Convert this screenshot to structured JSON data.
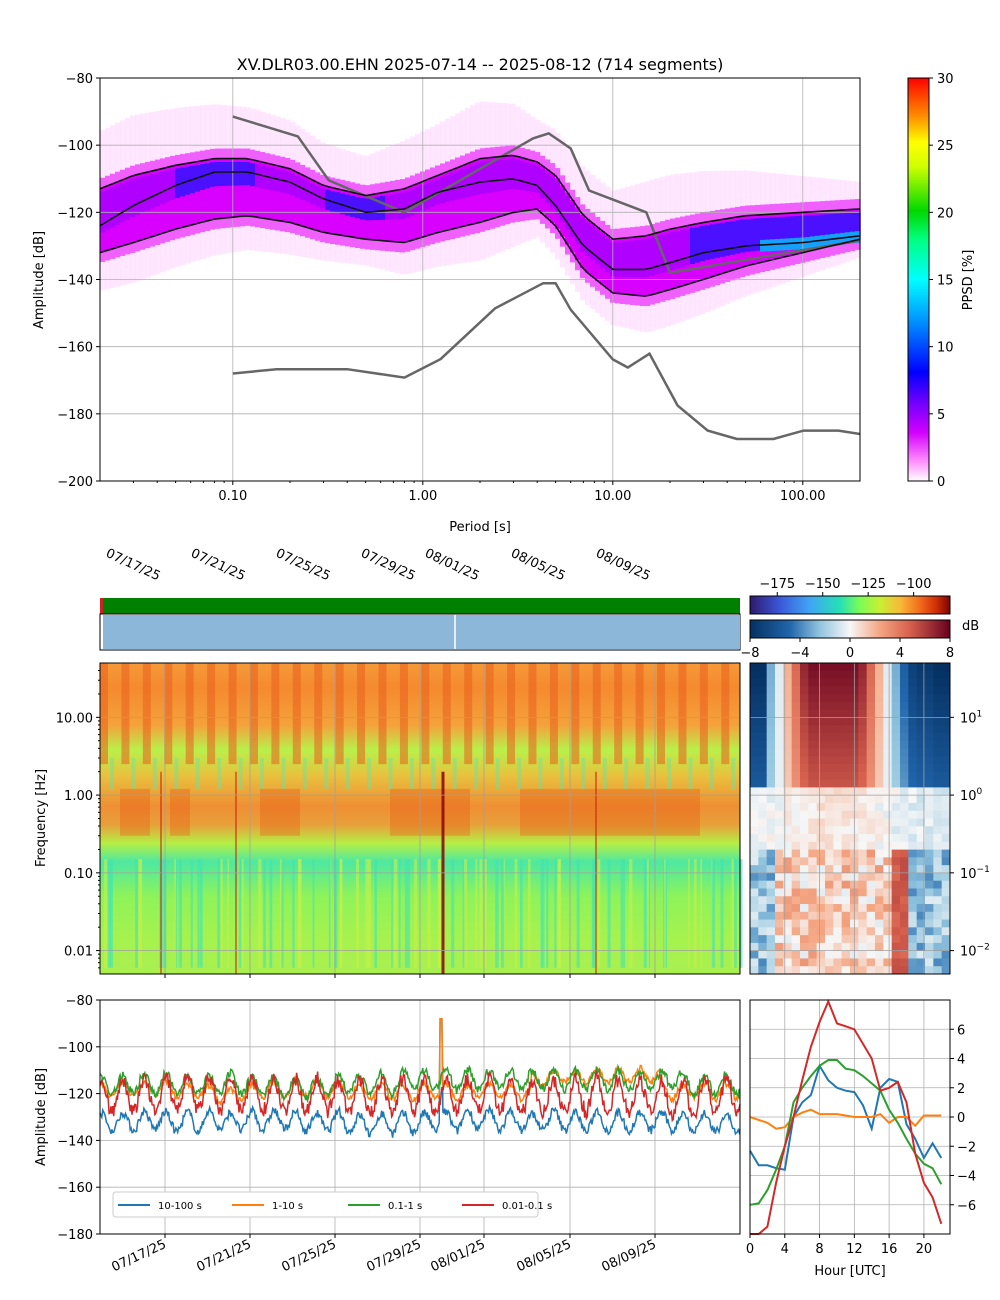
{
  "chart_data": [
    {
      "type": "heatmap",
      "title": "XV.DLR03.00.EHN   2025-07-14 -- 2025-08-12  (714 segments)",
      "xlabel": "Period [s]",
      "ylabel": "Amplitude [dB]",
      "x_scale": "log",
      "xlim": [
        0.02,
        200
      ],
      "ylim": [
        -200,
        -80
      ],
      "x_ticks": [
        0.1,
        1,
        10,
        100
      ],
      "x_tick_labels": [
        "0.10",
        "1.00",
        "10.00",
        "100.00"
      ],
      "y_ticks": [
        -200,
        -180,
        -160,
        -140,
        -120,
        -100,
        -80
      ],
      "grid": true,
      "colorbar": {
        "label": "PPSD [%]",
        "range": [
          0,
          30
        ],
        "ticks": [
          0,
          5,
          10,
          15,
          20,
          25,
          30
        ]
      },
      "series": [
        {
          "name": "percentile-90",
          "x": [
            0.02,
            0.03,
            0.05,
            0.08,
            0.12,
            0.2,
            0.3,
            0.5,
            0.8,
            1.2,
            2,
            3,
            4,
            5,
            7,
            10,
            15,
            20,
            30,
            50,
            100,
            200
          ],
          "values": [
            -113,
            -109,
            -106,
            -104,
            -104,
            -107,
            -112,
            -115,
            -113,
            -109,
            -104,
            -103,
            -105,
            -109,
            -121,
            -128,
            -127,
            -125,
            -123,
            -121,
            -120,
            -119
          ]
        },
        {
          "name": "percentile-50",
          "x": [
            0.02,
            0.03,
            0.05,
            0.08,
            0.12,
            0.2,
            0.3,
            0.5,
            0.8,
            1.2,
            2,
            3,
            4,
            5,
            7,
            10,
            15,
            20,
            30,
            50,
            100,
            200
          ],
          "values": [
            -124,
            -118,
            -112,
            -108,
            -108,
            -111,
            -116,
            -120,
            -119,
            -114,
            -111,
            -110,
            -112,
            -118,
            -130,
            -137,
            -137,
            -135,
            -132,
            -130,
            -129,
            -127
          ]
        },
        {
          "name": "percentile-10",
          "x": [
            0.02,
            0.03,
            0.05,
            0.08,
            0.12,
            0.2,
            0.3,
            0.5,
            0.8,
            1.2,
            2,
            3,
            4,
            5,
            7,
            10,
            15,
            20,
            30,
            50,
            100,
            200
          ],
          "values": [
            -132,
            -129,
            -125,
            -122,
            -121,
            -123,
            -126,
            -128,
            -129,
            -126,
            -123,
            -120,
            -119,
            -124,
            -137,
            -144,
            -145,
            -143,
            -140,
            -136,
            -132,
            -128
          ]
        },
        {
          "name": "nhnm",
          "x": [
            0.1,
            0.22,
            0.32,
            0.8,
            3.8,
            4.6,
            6,
            7.5,
            15,
            20,
            354
          ],
          "values": [
            -91.5,
            -97.4,
            -110.5,
            -120,
            -98,
            -96.5,
            -101,
            -113.5,
            -120,
            -138,
            -126
          ]
        },
        {
          "name": "nlnm",
          "x": [
            0.1,
            0.17,
            0.4,
            0.8,
            1.24,
            2.4,
            4.3,
            5,
            6,
            10,
            12,
            15.6,
            21.9,
            31.6,
            45,
            70,
            101,
            154,
            200
          ],
          "values": [
            -168,
            -166.7,
            -166.7,
            -169.2,
            -163.7,
            -148.6,
            -141.1,
            -141.1,
            -149,
            -163.8,
            -166.2,
            -162.1,
            -177.5,
            -185,
            -187.5,
            -187.5,
            -185,
            -185,
            -186
          ]
        }
      ]
    },
    {
      "type": "heatmap",
      "ylabel": "Frequency [Hz]",
      "y_scale": "log",
      "ylim": [
        0.005,
        50
      ],
      "y_ticks": [
        0.01,
        0.1,
        1,
        10
      ],
      "y_tick_labels": [
        "0.01",
        "0.10",
        "1.00",
        "10.00"
      ],
      "x_range": [
        "2025-07-14",
        "2025-08-12"
      ],
      "x_tick_labels": [
        "07/17/25",
        "07/21/25",
        "07/25/25",
        "07/29/25",
        "08/01/25",
        "08/05/25",
        "08/09/25"
      ],
      "colorbar": {
        "ticks": [
          -175,
          -150,
          -125,
          -100
        ]
      },
      "grid": true
    },
    {
      "type": "heatmap",
      "xlabel": "Hour [UTC]",
      "y_scale": "log",
      "y_tick_labels": [
        "10^-2",
        "10^-1",
        "10^0",
        "10^1"
      ],
      "colorbar": {
        "label": "dB",
        "range": [
          -8,
          8
        ],
        "ticks": [
          -8,
          -4,
          0,
          4,
          8
        ]
      }
    },
    {
      "type": "line",
      "ylabel": "Amplitude [dB]",
      "ylim": [
        -180,
        -80
      ],
      "y_ticks": [
        -180,
        -160,
        -140,
        -120,
        -100,
        -80
      ],
      "x_tick_labels": [
        "07/17/25",
        "07/21/25",
        "07/25/25",
        "07/29/25",
        "08/01/25",
        "08/05/25",
        "08/09/25"
      ],
      "legend": "lower-left",
      "grid": true,
      "series": [
        {
          "name": "10-100 s",
          "color": "#1f77b4",
          "mean": -132,
          "amplitude": 4
        },
        {
          "name": "1-10 s",
          "color": "#ff7f0e",
          "mean": -119,
          "amplitude": 3
        },
        {
          "name": "0.1-1 s",
          "color": "#2ca02c",
          "mean": -116,
          "amplitude": 4
        },
        {
          "name": "0.01-0.1 s",
          "color": "#d62728",
          "mean": -121,
          "amplitude": 7
        }
      ]
    },
    {
      "type": "line",
      "xlabel": "Hour [UTC]",
      "xlim": [
        0,
        23
      ],
      "ylim": [
        -8,
        8
      ],
      "x_ticks": [
        0,
        4,
        8,
        12,
        16,
        20
      ],
      "y_ticks": [
        -6,
        -4,
        -2,
        0,
        2,
        4,
        6
      ],
      "grid": true,
      "x": [
        0,
        1,
        2,
        3,
        4,
        5,
        6,
        7,
        8,
        9,
        10,
        11,
        12,
        13,
        14,
        15,
        16,
        17,
        18,
        19,
        20,
        21,
        22
      ],
      "series": [
        {
          "name": "10-100 s",
          "color": "#1f77b4",
          "values": [
            -2.3,
            -3.3,
            -3.3,
            -3.5,
            -3.6,
            0.0,
            1.0,
            1.5,
            3.5,
            2.5,
            2.0,
            1.8,
            1.7,
            0.8,
            -0.8,
            2.0,
            2.6,
            2.4,
            -0.5,
            -1.5,
            -2.8,
            -1.8,
            -2.8
          ]
        },
        {
          "name": "1-10 s",
          "color": "#ff7f0e",
          "values": [
            0.0,
            -0.2,
            -0.4,
            -0.8,
            -0.7,
            0.0,
            0.3,
            0.5,
            0.2,
            0.2,
            0.2,
            0.1,
            0.0,
            0.0,
            0.0,
            0.2,
            -0.4,
            0.0,
            0.0,
            -0.6,
            0.1,
            0.1,
            0.1
          ]
        },
        {
          "name": "0.1-1 s",
          "color": "#2ca02c",
          "values": [
            -6.0,
            -5.9,
            -5.0,
            -3.6,
            -2.0,
            1.0,
            2.0,
            2.8,
            3.5,
            3.9,
            3.9,
            3.3,
            3.2,
            2.8,
            2.3,
            1.8,
            0.5,
            -0.4,
            -1.5,
            -2.5,
            -3.2,
            -3.5,
            -4.6
          ]
        },
        {
          "name": "0.01-0.1 s",
          "color": "#d62728",
          "values": [
            -9.5,
            -8.5,
            -7.5,
            -4.5,
            -2.0,
            0.0,
            2.5,
            4.8,
            6.5,
            7.9,
            6.4,
            6.2,
            6.0,
            5.0,
            4.0,
            1.8,
            2.0,
            2.4,
            1.0,
            -2.5,
            -4.5,
            -5.5,
            -7.3
          ]
        }
      ]
    }
  ]
}
